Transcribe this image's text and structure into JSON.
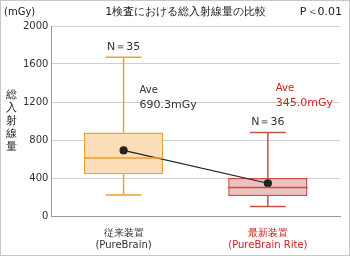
{
  "chart_data": {
    "type": "boxplot",
    "title": "1検査における総入射線量の比較",
    "annotation": "P＜0.01",
    "y_unit": "(mGy)",
    "y_label": "総入射線量",
    "categories": [
      [
        "従来装置",
        "(PureBrain)"
      ],
      [
        "最新装置",
        "(PureBrain Rite)"
      ]
    ],
    "min": [
      220,
      100
    ],
    "q1": [
      440,
      210
    ],
    "median": [
      610,
      300
    ],
    "q3": [
      880,
      400
    ],
    "max": [
      1670,
      880
    ],
    "mean": [
      690.3,
      345.0
    ],
    "mean_labels": [
      [
        "Ave",
        "690.3mGy"
      ],
      [
        "Ave",
        "345.0mGy"
      ]
    ],
    "n_labels": [
      "N＝35",
      "N＝36"
    ],
    "colors": [
      "#f0a030",
      "#c8504a"
    ],
    "marker": "circle",
    "ylim": [
      0,
      2000
    ],
    "yticks": [
      0,
      400,
      800,
      1200,
      1600,
      2000
    ],
    "grid": true
  }
}
